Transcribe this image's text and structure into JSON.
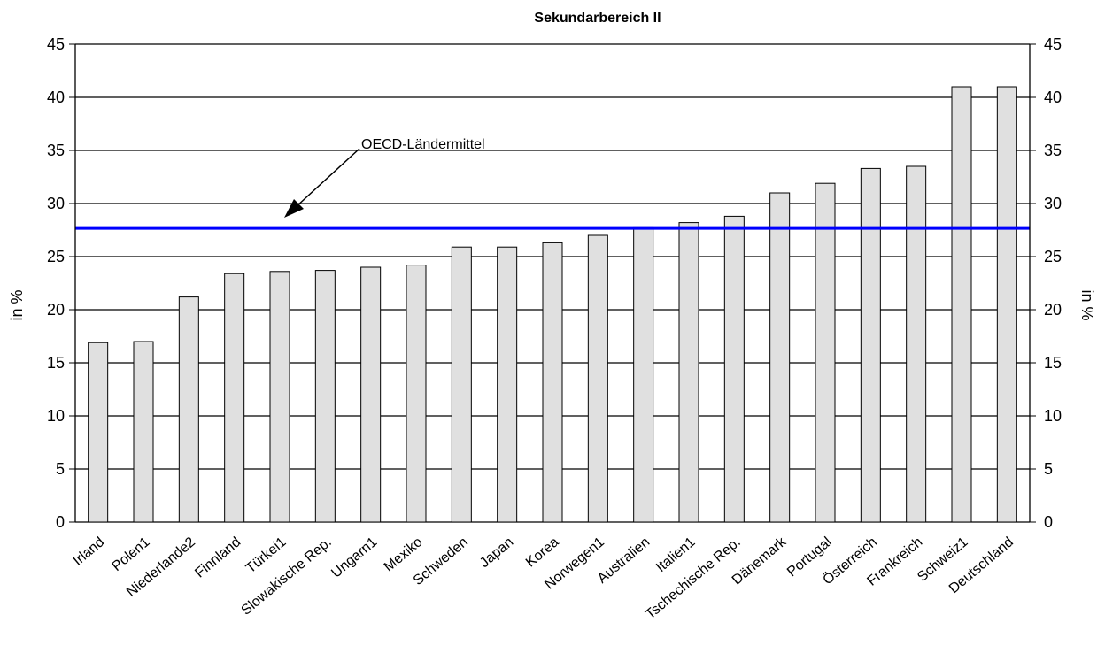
{
  "chart_data": {
    "type": "bar",
    "title": "Sekundarbereich II",
    "ylabel": "in %",
    "ylabel_right": "in %",
    "ylim": [
      0,
      45
    ],
    "yticks": [
      0,
      5,
      10,
      15,
      20,
      25,
      30,
      35,
      40,
      45
    ],
    "grid": true,
    "categories": [
      "Irland",
      "Polen1",
      "Niederlande2",
      "Finnland",
      "Türkei1",
      "Slowakische Rep.",
      "Ungarn1",
      "Mexiko",
      "Schweden",
      "Japan",
      "Korea",
      "Norwegen1",
      "Australien",
      "Italien1",
      "Tschechische Rep.",
      "Dänemark",
      "Portugal",
      "Österreich",
      "Frankreich",
      "Schweiz1",
      "Deutschland"
    ],
    "values": [
      16.9,
      17.0,
      21.2,
      23.4,
      23.6,
      23.7,
      24.0,
      24.2,
      25.9,
      25.9,
      26.3,
      27.0,
      27.8,
      28.2,
      28.8,
      31.0,
      31.9,
      33.3,
      33.5,
      41.0,
      41.0
    ],
    "reference_line": {
      "label": "OECD-Ländermittel",
      "value": 27.7
    },
    "colors": {
      "bar_fill": "#e0e0e0",
      "bar_stroke": "#000000",
      "reference_line": "#0000ff",
      "grid": "#000000"
    }
  }
}
